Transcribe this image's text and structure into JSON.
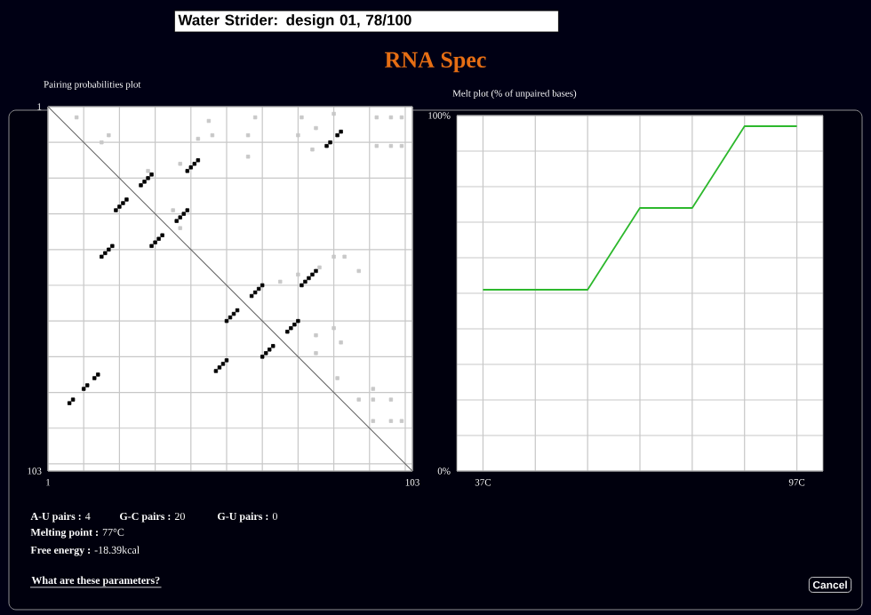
{
  "chart_data": [
    {
      "type": "scatter",
      "title": "Pairing probabilities plot",
      "grid": true,
      "xlim": [
        1,
        103
      ],
      "ylim": [
        103,
        1
      ],
      "xticks": [
        1,
        {
          "value": 11,
          "label": null
        },
        {
          "value": 21,
          "label": null
        },
        {
          "value": 31,
          "label": null
        },
        {
          "value": 41,
          "label": null
        },
        {
          "value": 51,
          "label": null
        },
        {
          "value": 61,
          "label": null
        },
        {
          "value": 71,
          "label": null
        },
        {
          "value": 81,
          "label": null
        },
        {
          "value": 91,
          "label": null
        },
        {
          "value": 101,
          "label": null
        },
        103
      ],
      "yticks": [
        1,
        {
          "value": 11,
          "label": null
        },
        {
          "value": 21,
          "label": null
        },
        {
          "value": 31,
          "label": null
        },
        {
          "value": 41,
          "label": null
        },
        {
          "value": 51,
          "label": null
        },
        {
          "value": 61,
          "label": null
        },
        {
          "value": 71,
          "label": null
        },
        {
          "value": 81,
          "label": null
        },
        {
          "value": 91,
          "label": null
        },
        {
          "value": 101,
          "label": null
        },
        103
      ],
      "series": [
        {
          "color": "#c8c8c8",
          "marker": "square",
          "x": [
            9,
            18,
            16,
            29,
            38,
            46,
            47,
            43,
            59,
            57,
            57,
            72,
            71,
            76,
            75,
            81,
            93,
            97,
            100,
            93,
            97,
            100,
            81,
            84,
            77,
            88,
            71,
            66,
            76,
            81,
            83,
            76,
            82,
            92,
            88,
            92,
            97,
            92,
            97,
            100,
            36,
            38
          ],
          "values": [
            4,
            9,
            11,
            19,
            17,
            5,
            9,
            10,
            4,
            9,
            15,
            4,
            9,
            7,
            13,
            3,
            4,
            4,
            4,
            12,
            12,
            12,
            43,
            43,
            46,
            47,
            48,
            50,
            65,
            63,
            67,
            70,
            77,
            80,
            83,
            83,
            83,
            89,
            89,
            89,
            30,
            35
          ]
        },
        {
          "type": "line",
          "marker": "none",
          "color": "#606060",
          "x": [
            1,
            103
          ],
          "values": [
            1,
            103
          ]
        },
        {
          "color": "#000000",
          "marker": "square",
          "x": [
            79,
            80,
            82,
            83,
            40,
            41,
            42,
            43,
            27,
            28,
            29,
            30,
            20,
            21,
            22,
            23,
            37,
            38,
            39,
            40,
            30,
            31,
            32,
            33,
            16,
            17,
            18,
            19,
            72,
            73,
            74,
            75,
            76,
            58,
            59,
            60,
            61,
            51,
            52,
            53,
            54,
            68,
            69,
            70,
            71,
            61,
            62,
            63,
            64,
            48,
            49,
            50,
            51,
            7,
            8,
            11,
            12,
            14,
            15
          ],
          "values": [
            12,
            11,
            9,
            8,
            19,
            18,
            17,
            16,
            23,
            22,
            21,
            20,
            30,
            29,
            28,
            27,
            33,
            32,
            31,
            30,
            40,
            39,
            38,
            37,
            43,
            42,
            41,
            40,
            51,
            50,
            49,
            48,
            47,
            54,
            53,
            52,
            51,
            61,
            60,
            59,
            58,
            64,
            63,
            62,
            61,
            71,
            70,
            69,
            68,
            75,
            74,
            73,
            72,
            84,
            83,
            80,
            79,
            77,
            76
          ]
        }
      ]
    },
    {
      "type": "line",
      "title": "Melt plot (% of unpaired bases)",
      "grid": true,
      "color": "#2db82d",
      "x": [
        37,
        47,
        57,
        67,
        77,
        87,
        97
      ],
      "values": [
        51,
        51,
        51,
        74,
        74,
        97,
        97
      ],
      "xlim": [
        32,
        102
      ],
      "ylim": [
        0,
        100
      ],
      "xticks": [
        {
          "value": 37,
          "label": "37C"
        },
        {
          "value": 47,
          "label": null
        },
        {
          "value": 57,
          "label": null
        },
        {
          "value": 67,
          "label": null
        },
        {
          "value": 77,
          "label": null
        },
        {
          "value": 87,
          "label": null
        },
        {
          "value": 97,
          "label": "97C"
        }
      ],
      "yticks": [
        {
          "value": 0,
          "label": "0%"
        },
        {
          "value": 10,
          "label": null
        },
        {
          "value": 20,
          "label": null
        },
        {
          "value": 30,
          "label": null
        },
        {
          "value": 40,
          "label": null
        },
        {
          "value": 50,
          "label": null
        },
        {
          "value": 60,
          "label": null
        },
        {
          "value": 70,
          "label": null
        },
        {
          "value": 80,
          "label": null
        },
        {
          "value": 90,
          "label": null
        },
        {
          "value": 100,
          "label": "100%"
        }
      ]
    },
    {
      "type": "other",
      "title": "RNA Spec",
      "subtitle": "Water Strider:  design 01,  78/100",
      "annotations": [
        "**A-U pairs :** 4",
        "**G-C pairs :** 20",
        "**G-U pairs :** 0",
        "**Melting point :** 77°C",
        "**Free energy :** -18.39kcal",
        "What are these parameters?",
        "Cancel"
      ]
    }
  ]
}
